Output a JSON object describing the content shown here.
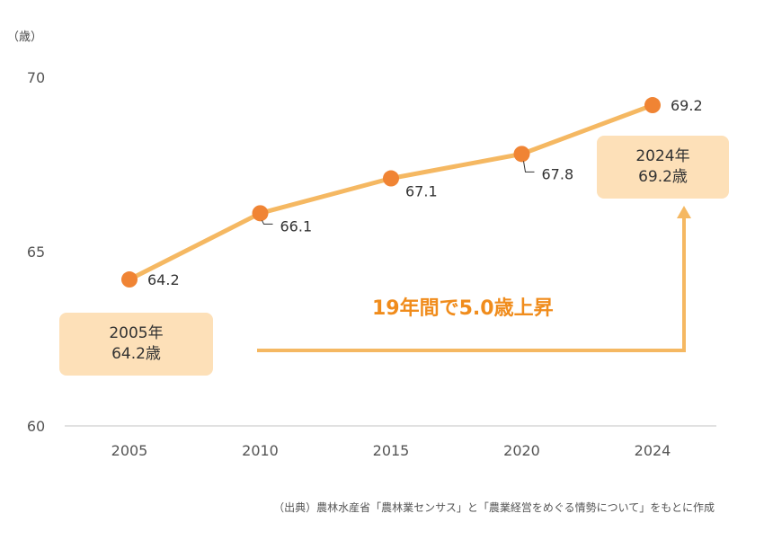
{
  "chart_data": {
    "type": "line",
    "x": [
      "2005",
      "2010",
      "2015",
      "2020",
      "2024"
    ],
    "values": [
      64.2,
      66.1,
      67.1,
      67.8,
      69.2
    ],
    "data_labels": [
      "64.2",
      "66.1",
      "67.1",
      "67.8",
      "69.2"
    ],
    "y_ticks": [
      "70",
      "65",
      "60"
    ],
    "ylim": [
      60,
      70
    ],
    "y_unit_label": "（歳）",
    "grid": false,
    "colors": {
      "line": "#f5b862",
      "marker": "#f08434",
      "accent_text": "#f08c1c",
      "callout_bg": "#fde0b8",
      "arrow": "#f5b862"
    }
  },
  "annotations": {
    "start_callout": {
      "year": "2005年",
      "value": "64.2歳"
    },
    "end_callout": {
      "year": "2024年",
      "value": "69.2歳"
    },
    "headline": "19年間で5.0歳上昇"
  },
  "source_note": "（出典）農林水産省「農林業センサス」と「農業経営をめぐる情勢について」をもとに作成"
}
